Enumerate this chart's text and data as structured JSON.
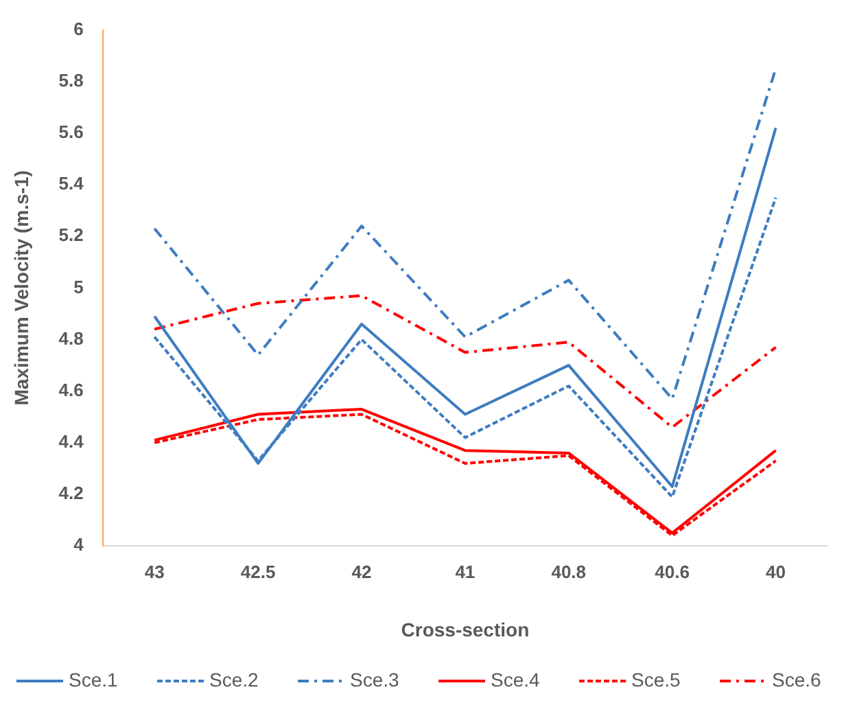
{
  "chart_data": {
    "type": "line",
    "xlabel": "Cross-section",
    "ylabel": "Maximum Velocity (m.s-1)",
    "categories": [
      "43",
      "42.5",
      "42",
      "41",
      "40.8",
      "40.6",
      "40"
    ],
    "ylim": [
      4,
      6
    ],
    "yticks": [
      4,
      4.2,
      4.4,
      4.6,
      4.8,
      5,
      5.2,
      5.4,
      5.6,
      5.8,
      6
    ],
    "grid": false,
    "legend": "bottom",
    "marker": "none",
    "series": [
      {
        "name": "Sce.1",
        "color": "#3d7cc1",
        "line_style": "solid",
        "values": [
          4.89,
          4.32,
          4.86,
          4.51,
          4.7,
          4.23,
          5.62
        ]
      },
      {
        "name": "Sce.2",
        "color": "#3d7cc1",
        "line_style": "dashed",
        "values": [
          4.81,
          4.33,
          4.8,
          4.42,
          4.62,
          4.19,
          5.35
        ]
      },
      {
        "name": "Sce.3",
        "color": "#3d7cc1",
        "line_style": "dashdot",
        "values": [
          5.23,
          4.74,
          5.24,
          4.81,
          5.03,
          4.57,
          5.85
        ]
      },
      {
        "name": "Sce.4",
        "color": "#ff0000",
        "line_style": "solid",
        "values": [
          4.41,
          4.51,
          4.53,
          4.37,
          4.36,
          4.05,
          4.37
        ]
      },
      {
        "name": "Sce.5",
        "color": "#ff0000",
        "line_style": "dashed",
        "values": [
          4.4,
          4.49,
          4.51,
          4.32,
          4.35,
          4.04,
          4.33
        ]
      },
      {
        "name": "Sce.6",
        "color": "#ff0000",
        "line_style": "dashdot",
        "values": [
          4.84,
          4.94,
          4.97,
          4.75,
          4.79,
          4.46,
          4.77
        ]
      }
    ]
  }
}
